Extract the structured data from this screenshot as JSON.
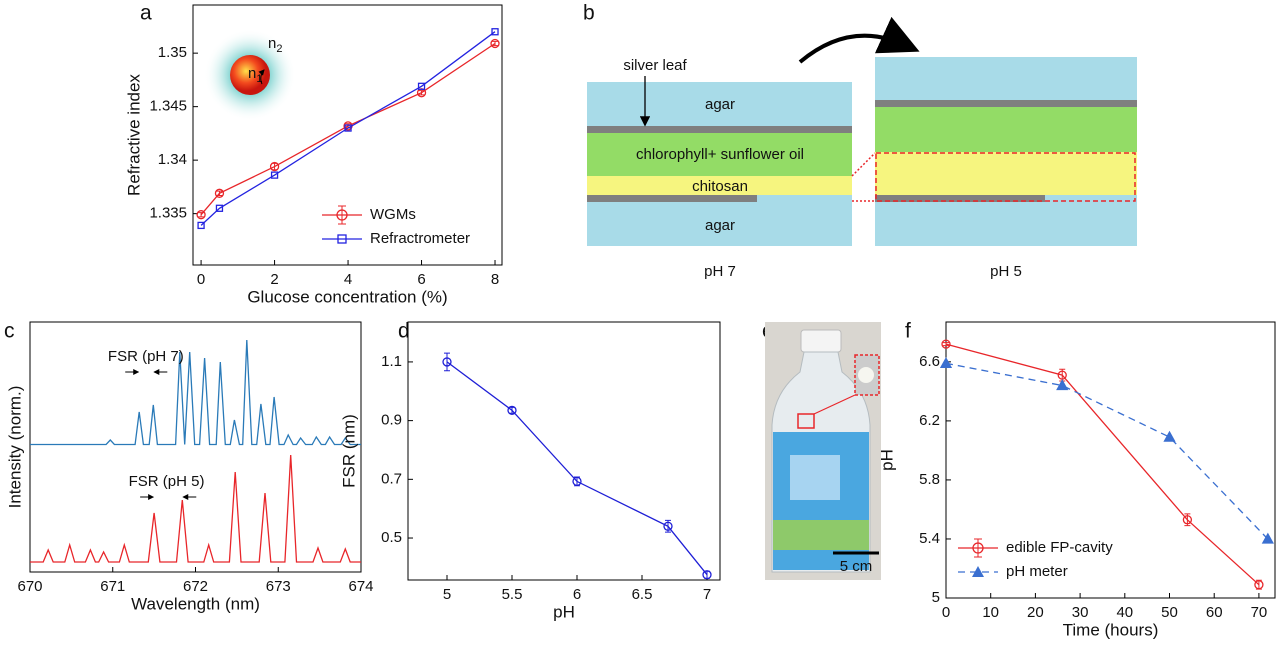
{
  "panel_labels": [
    "a",
    "b",
    "c",
    "d",
    "e",
    "f"
  ],
  "chart_data": [
    {
      "type": "line",
      "x_label": "Glucose concentration (%)",
      "y_label": "Refractive index",
      "xlim": [
        -0.22,
        8.19
      ],
      "xticks": [
        0,
        2,
        4,
        6,
        8
      ],
      "ylim": [
        1.3302,
        1.3545
      ],
      "yticks": [
        1.335,
        1.34,
        1.345,
        1.35
      ],
      "legend": "lower right",
      "inset_labels": [
        {
          "text": "n",
          "sub": "2"
        },
        {
          "text": "n",
          "sub": "1"
        }
      ],
      "series": [
        {
          "name": "WGMs",
          "color": "#e8262a",
          "marker": "circle",
          "x": [
            0,
            0.5,
            2,
            4,
            6,
            8
          ],
          "values": [
            1.3349,
            1.3369,
            1.3394,
            1.3432,
            1.3463,
            1.3509
          ],
          "errors": [
            0.0002,
            0.0002,
            0.0003,
            0.0002,
            0.0002,
            0.0002
          ]
        },
        {
          "name": "Refractrometer",
          "color": "#2323e0",
          "marker": "square",
          "x": [
            0,
            0.5,
            2,
            4,
            6,
            8
          ],
          "values": [
            1.3339,
            1.3355,
            1.3386,
            1.343,
            1.3469,
            1.352
          ]
        }
      ]
    },
    {
      "type": "line",
      "x_label": "Wavelength (nm)",
      "y_label": "Intensity (norm.)",
      "xlim": [
        670,
        674
      ],
      "xticks": [
        670,
        671,
        672,
        673,
        674
      ],
      "ylim": [
        0,
        1
      ],
      "annotations": [
        "FSR (pH 7)",
        "FSR (pH 5)"
      ],
      "series": [
        {
          "color": "#2a7ab8",
          "x": [
            670,
            670.92,
            670.97,
            671.02,
            671.27,
            671.32,
            671.37,
            671.44,
            671.49,
            671.54,
            671.76,
            671.81,
            671.87,
            671.93,
            671.99,
            672.05,
            672.11,
            672.17,
            672.25,
            672.3,
            672.36,
            672.42,
            672.47,
            672.53,
            672.57,
            672.62,
            672.68,
            672.74,
            672.79,
            672.85,
            672.9,
            672.95,
            673.01,
            673.07,
            673.12,
            673.18,
            673.22,
            673.27,
            673.33,
            673.41,
            673.46,
            673.52,
            673.57,
            673.62,
            673.68,
            673.76,
            673.81,
            673.87,
            674
          ],
          "values": [
            0.51,
            0.51,
            0.528,
            0.51,
            0.51,
            0.64,
            0.51,
            0.51,
            0.668,
            0.51,
            0.51,
            0.88,
            0.51,
            0.88,
            0.51,
            0.51,
            0.856,
            0.51,
            0.51,
            0.84,
            0.51,
            0.51,
            0.608,
            0.51,
            0.51,
            0.928,
            0.51,
            0.51,
            0.672,
            0.51,
            0.51,
            0.7,
            0.51,
            0.51,
            0.548,
            0.51,
            0.51,
            0.536,
            0.51,
            0.51,
            0.54,
            0.51,
            0.51,
            0.54,
            0.51,
            0.51,
            0.536,
            0.51,
            0.51
          ]
        },
        {
          "color": "#e8262a",
          "x": [
            670,
            670.16,
            670.22,
            670.28,
            670.42,
            670.48,
            670.54,
            670.67,
            670.73,
            670.79,
            670.83,
            670.89,
            670.95,
            671.08,
            671.14,
            671.2,
            671.43,
            671.5,
            671.57,
            671.77,
            671.84,
            671.91,
            672.1,
            672.16,
            672.22,
            672.41,
            672.48,
            672.55,
            672.77,
            672.84,
            672.91,
            673.08,
            673.15,
            673.22,
            673.42,
            673.48,
            673.54,
            673.75,
            673.81,
            673.87,
            674
          ],
          "values": [
            0.04,
            0.04,
            0.088,
            0.04,
            0.04,
            0.108,
            0.04,
            0.04,
            0.088,
            0.04,
            0.04,
            0.08,
            0.04,
            0.04,
            0.108,
            0.04,
            0.04,
            0.236,
            0.04,
            0.04,
            0.288,
            0.04,
            0.04,
            0.108,
            0.04,
            0.04,
            0.4,
            0.04,
            0.04,
            0.316,
            0.04,
            0.04,
            0.468,
            0.04,
            0.04,
            0.096,
            0.04,
            0.04,
            0.092,
            0.04,
            0.04
          ]
        }
      ]
    },
    {
      "type": "line",
      "x_label": "pH",
      "y_label": "FSR (nm)",
      "xlim": [
        4.7,
        7.1
      ],
      "xticks": [
        5,
        5.5,
        6,
        6.5,
        7
      ],
      "ylim": [
        0.357,
        1.236
      ],
      "yticks": [
        0.5,
        0.7,
        0.9,
        1.1
      ],
      "series": [
        {
          "color": "#1f1fd6",
          "marker": "circle",
          "x": [
            5,
            5.5,
            6,
            6.7,
            7
          ],
          "values": [
            1.1,
            0.935,
            0.693,
            0.54,
            0.375
          ],
          "errors": [
            0.03,
            0.01,
            0.015,
            0.02,
            0.012
          ]
        }
      ]
    },
    {
      "type": "line",
      "x_label": "Time (hours)",
      "y_label": "pH",
      "xlim": [
        0,
        73.6
      ],
      "xticks": [
        0,
        10,
        20,
        30,
        40,
        50,
        60,
        70
      ],
      "ylim": [
        5,
        6.87
      ],
      "yticks": [
        5,
        5.4,
        5.8,
        6.2,
        6.6
      ],
      "legend": "lower left",
      "series": [
        {
          "name": "edible FP-cavity",
          "color": "#e8262a",
          "marker": "circle",
          "x": [
            0,
            26,
            54,
            70
          ],
          "values": [
            6.72,
            6.51,
            5.53,
            5.09
          ],
          "errors": [
            0.01,
            0.04,
            0.04,
            0.03
          ]
        },
        {
          "name": "pH meter",
          "color": "#3a6fd0",
          "marker": "triangle",
          "line_style": "dashed",
          "x": [
            0,
            26,
            50,
            72
          ],
          "values": [
            6.59,
            6.44,
            6.09,
            5.4
          ]
        }
      ]
    }
  ],
  "diagram": {
    "silver_leaf": "silver leaf",
    "agar_top": "agar",
    "oil": "chlorophyll+ sunflower oil",
    "chitosan": "chitosan",
    "agar_bottom": "agar",
    "left_caption": "pH 7",
    "right_caption": "pH 5"
  },
  "photo": {
    "scale_bar": "5 cm"
  }
}
